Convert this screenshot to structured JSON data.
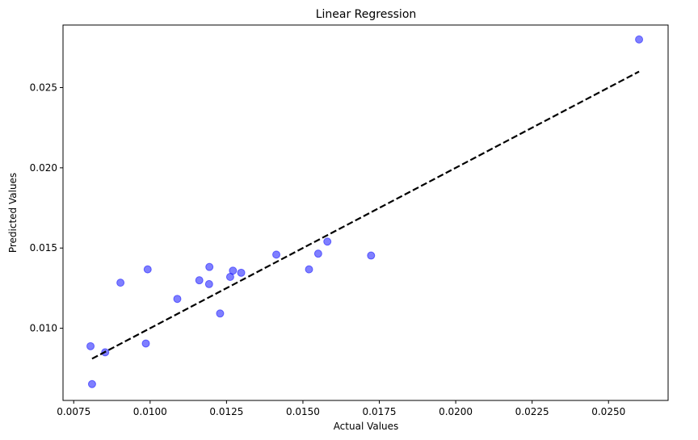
{
  "chart_data": {
    "type": "scatter",
    "title": "Linear Regression",
    "xlabel": "Actual Values",
    "ylabel": "Predicted Values",
    "xlim": [
      0.00715,
      0.02695
    ],
    "ylim": [
      0.0055,
      0.0289
    ],
    "xticks": [
      0.0075,
      0.01,
      0.0125,
      0.015,
      0.0175,
      0.02,
      0.0225,
      0.025
    ],
    "xtick_labels": [
      "0.0075",
      "0.0100",
      "0.0125",
      "0.0150",
      "0.0175",
      "0.0200",
      "0.0225",
      "0.0250"
    ],
    "yticks": [
      0.01,
      0.015,
      0.02,
      0.025
    ],
    "ytick_labels": [
      "0.010",
      "0.015",
      "0.020",
      "0.025"
    ],
    "grid": false,
    "series": [
      {
        "kind": "scatter",
        "color": "#0000ff",
        "alpha": 0.5,
        "points": [
          [
            0.00805,
            0.00888
          ],
          [
            0.0081,
            0.00652
          ],
          [
            0.00853,
            0.0085
          ],
          [
            0.00903,
            0.01284
          ],
          [
            0.00986,
            0.00905
          ],
          [
            0.00992,
            0.01367
          ],
          [
            0.01089,
            0.01183
          ],
          [
            0.01161,
            0.01299
          ],
          [
            0.01193,
            0.01275
          ],
          [
            0.01194,
            0.01382
          ],
          [
            0.01229,
            0.01092
          ],
          [
            0.01262,
            0.0132
          ],
          [
            0.01271,
            0.01359
          ],
          [
            0.01298,
            0.01346
          ],
          [
            0.01413,
            0.01459
          ],
          [
            0.0152,
            0.01367
          ],
          [
            0.0155,
            0.01465
          ],
          [
            0.0158,
            0.0154
          ],
          [
            0.01723,
            0.01453
          ],
          [
            0.026,
            0.028
          ]
        ]
      },
      {
        "kind": "line",
        "color": "#000000",
        "dash": "dashed",
        "points": [
          [
            0.0081,
            0.0081
          ],
          [
            0.026,
            0.026
          ]
        ]
      }
    ]
  }
}
